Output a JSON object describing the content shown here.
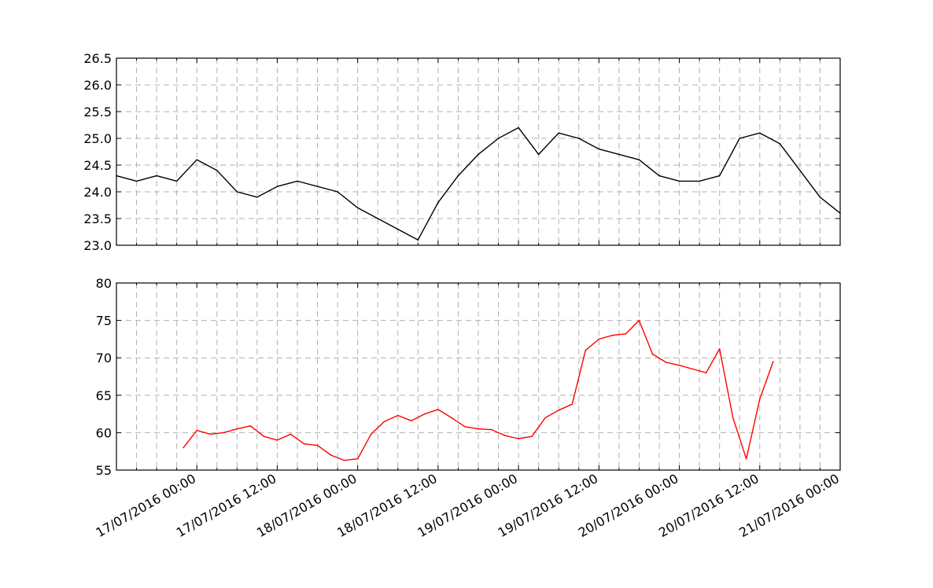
{
  "chart_data": [
    {
      "type": "line",
      "series_color": "#000000",
      "ylim": [
        23.0,
        26.5
      ],
      "yticks": [
        "23.0",
        "23.5",
        "24.0",
        "24.5",
        "25.0",
        "25.5",
        "26.0",
        "26.5"
      ],
      "xlim": [
        "2016-07-16 12:00",
        "2016-07-21 00:00"
      ],
      "grid": true,
      "x": [
        "2016-07-16 12:00",
        "2016-07-16 15:00",
        "2016-07-16 18:00",
        "2016-07-16 21:00",
        "2016-07-17 00:00",
        "2016-07-17 03:00",
        "2016-07-17 06:00",
        "2016-07-17 09:00",
        "2016-07-17 12:00",
        "2016-07-17 15:00",
        "2016-07-17 18:00",
        "2016-07-17 21:00",
        "2016-07-18 00:00",
        "2016-07-18 03:00",
        "2016-07-18 06:00",
        "2016-07-18 09:00",
        "2016-07-18 12:00",
        "2016-07-18 15:00",
        "2016-07-18 18:00",
        "2016-07-18 21:00",
        "2016-07-19 00:00",
        "2016-07-19 03:00",
        "2016-07-19 06:00",
        "2016-07-19 09:00",
        "2016-07-19 12:00",
        "2016-07-19 15:00",
        "2016-07-19 18:00",
        "2016-07-19 21:00",
        "2016-07-20 00:00",
        "2016-07-20 03:00",
        "2016-07-20 06:00",
        "2016-07-20 09:00",
        "2016-07-20 12:00",
        "2016-07-20 15:00",
        "2016-07-20 18:00",
        "2016-07-20 21:00",
        "2016-07-21 00:00"
      ],
      "y": [
        24.3,
        24.2,
        24.3,
        24.2,
        24.6,
        24.4,
        24.0,
        23.9,
        24.1,
        24.2,
        24.1,
        24.0,
        23.7,
        23.5,
        23.3,
        23.1,
        23.8,
        24.3,
        24.7,
        25.0,
        25.2,
        24.7,
        25.1,
        25.0,
        24.8,
        24.7,
        24.6,
        24.3,
        24.2,
        24.2,
        24.3,
        25.0,
        25.1,
        24.9,
        24.4,
        23.9,
        23.6
      ]
    },
    {
      "type": "line",
      "series_color": "#ff0000",
      "ylim": [
        55,
        80
      ],
      "yticks": [
        "55",
        "60",
        "65",
        "70",
        "75",
        "80"
      ],
      "xlim": [
        "2016-07-16 12:00",
        "2016-07-21 00:00"
      ],
      "xticks": [
        "17/07/2016 00:00",
        "17/07/2016 12:00",
        "18/07/2016 00:00",
        "18/07/2016 12:00",
        "19/07/2016 00:00",
        "19/07/2016 12:00",
        "20/07/2016 00:00",
        "20/07/2016 12:00",
        "21/07/2016 00:00"
      ],
      "grid": true,
      "x": [
        "2016-07-16 22:00",
        "2016-07-17 00:00",
        "2016-07-17 02:00",
        "2016-07-17 04:00",
        "2016-07-17 06:00",
        "2016-07-17 08:00",
        "2016-07-17 10:00",
        "2016-07-17 12:00",
        "2016-07-17 14:00",
        "2016-07-17 16:00",
        "2016-07-17 18:00",
        "2016-07-17 20:00",
        "2016-07-17 22:00",
        "2016-07-18 00:00",
        "2016-07-18 02:00",
        "2016-07-18 04:00",
        "2016-07-18 06:00",
        "2016-07-18 08:00",
        "2016-07-18 10:00",
        "2016-07-18 12:00",
        "2016-07-18 14:00",
        "2016-07-18 16:00",
        "2016-07-18 18:00",
        "2016-07-18 20:00",
        "2016-07-18 22:00",
        "2016-07-19 00:00",
        "2016-07-19 02:00",
        "2016-07-19 04:00",
        "2016-07-19 06:00",
        "2016-07-19 08:00",
        "2016-07-19 10:00",
        "2016-07-19 12:00",
        "2016-07-19 14:00",
        "2016-07-19 16:00",
        "2016-07-19 18:00",
        "2016-07-19 20:00",
        "2016-07-19 22:00",
        "2016-07-20 00:00",
        "2016-07-20 02:00",
        "2016-07-20 04:00",
        "2016-07-20 06:00",
        "2016-07-20 08:00",
        "2016-07-20 10:00",
        "2016-07-20 12:00",
        "2016-07-20 14:00"
      ],
      "y": [
        58.0,
        60.3,
        59.8,
        60.0,
        60.5,
        60.9,
        59.5,
        59.0,
        59.8,
        58.5,
        58.3,
        57.0,
        56.3,
        56.5,
        59.8,
        61.5,
        62.3,
        61.6,
        62.5,
        63.1,
        62.0,
        60.8,
        60.5,
        60.4,
        59.6,
        59.2,
        59.5,
        62.0,
        63.0,
        63.8,
        71.0,
        72.5,
        73.0,
        73.2,
        75.0,
        70.5,
        69.4,
        69.0,
        68.5,
        68.0,
        71.2,
        62.0,
        56.5,
        64.5,
        69.5
      ]
    }
  ]
}
